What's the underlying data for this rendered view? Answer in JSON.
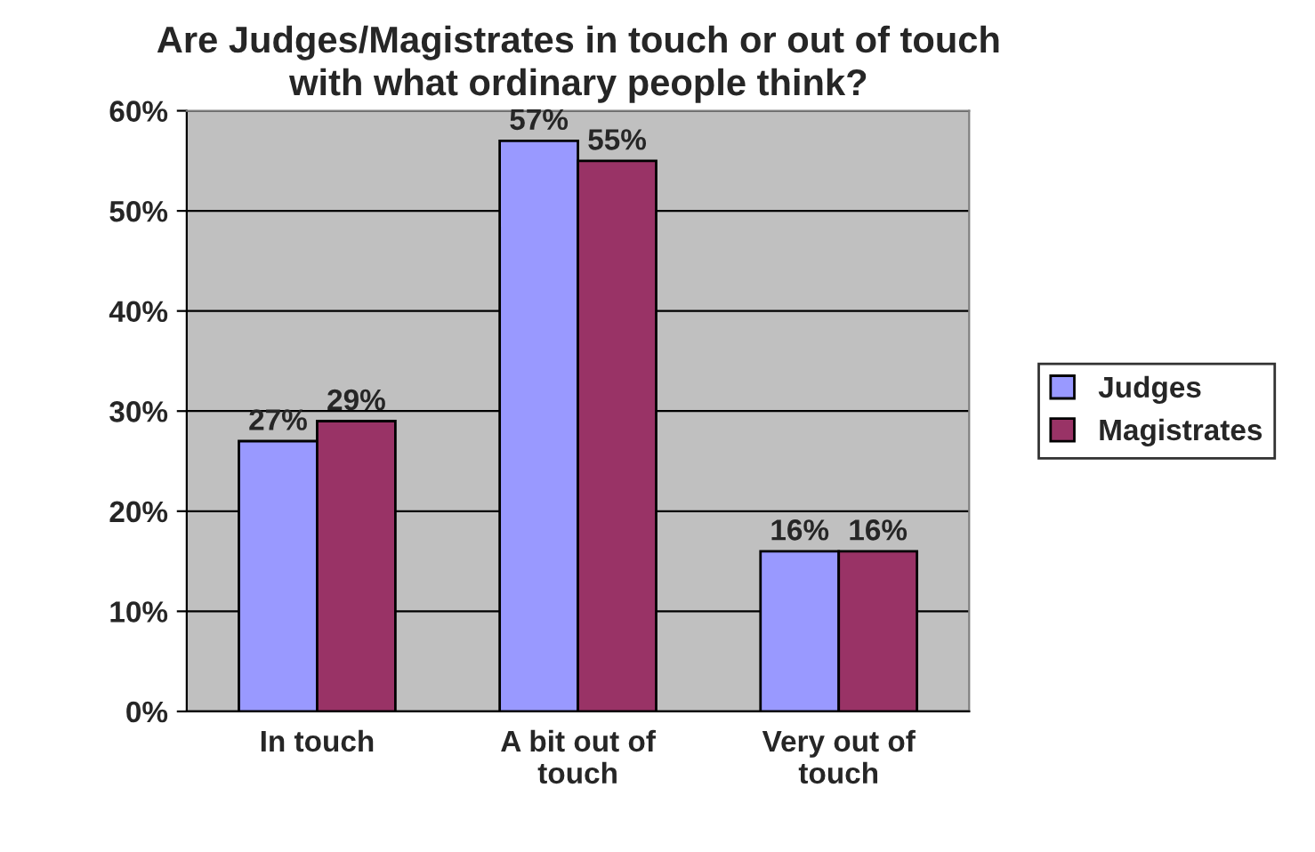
{
  "chart_data": {
    "type": "bar",
    "title": "Are Judges/Magistrates in touch or out of touch\nwith what ordinary people think?",
    "categories": [
      "In touch",
      "A bit out of\ntouch",
      "Very out of\ntouch"
    ],
    "series": [
      {
        "name": "Judges",
        "color": "#9999ff",
        "values": [
          27,
          57,
          16
        ],
        "value_labels": [
          "27%",
          "57%",
          "16%"
        ]
      },
      {
        "name": "Magistrates",
        "color": "#993366",
        "values": [
          29,
          55,
          16
        ],
        "value_labels": [
          "29%",
          "55%",
          "16%"
        ]
      }
    ],
    "ylim": [
      0,
      60
    ],
    "yticks": [
      {
        "value": 0,
        "label": "0%"
      },
      {
        "value": 10,
        "label": "10%"
      },
      {
        "value": 20,
        "label": "20%"
      },
      {
        "value": 30,
        "label": "30%"
      },
      {
        "value": 40,
        "label": "40%"
      },
      {
        "value": 50,
        "label": "50%"
      },
      {
        "value": 60,
        "label": "60%"
      }
    ],
    "grid": "y",
    "legend": "right"
  }
}
